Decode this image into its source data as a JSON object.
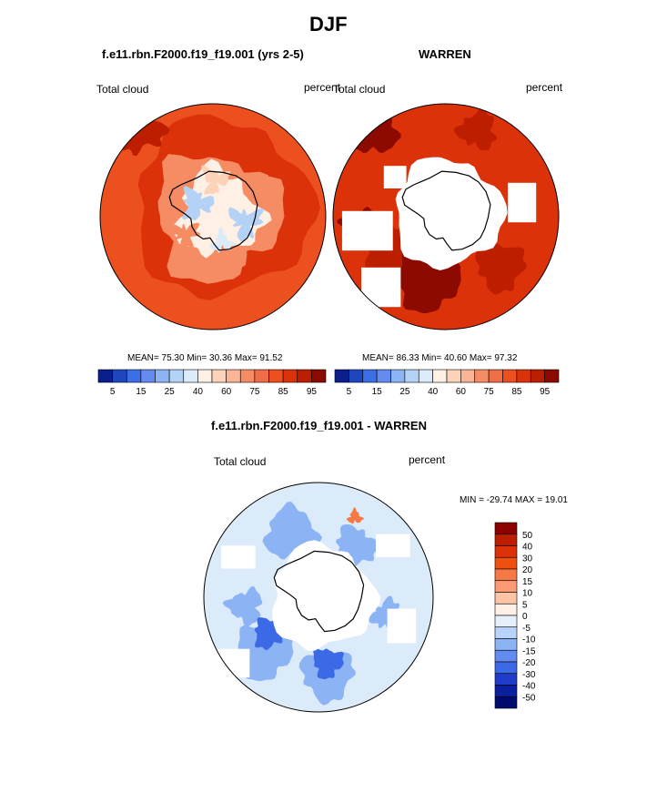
{
  "page_title": "DJF",
  "chart_data": [
    {
      "type": "heatmap",
      "title": "f.e11.rbn.F2000.f19_f19.001 (yrs 2-5)",
      "left_label": "Total cloud",
      "right_label": "percent",
      "stats_text": "MEAN=  75.30  Min=  30.36  Max=  91.52",
      "mean": 75.3,
      "min": 30.36,
      "max": 91.52,
      "colorbar": {
        "labels": [
          "5",
          "15",
          "25",
          "40",
          "60",
          "75",
          "85",
          "95"
        ],
        "colors": [
          "#0a1e8c",
          "#1e46be",
          "#3c6ee6",
          "#648cf0",
          "#8cb4f5",
          "#b4d2f5",
          "#dcebfa",
          "#fff0e6",
          "#fcd2b9",
          "#fab496",
          "#f58c64",
          "#f06e46",
          "#eb501e",
          "#dc320a",
          "#be1e00",
          "#8c0a00"
        ]
      },
      "regions": [
        {
          "zone": "ocean-outer",
          "value": 80
        },
        {
          "zone": "ocean-band",
          "value": 85
        },
        {
          "zone": "coast-ring",
          "value": 70
        },
        {
          "zone": "interior",
          "value": 45
        }
      ]
    },
    {
      "type": "heatmap",
      "title": "WARREN",
      "left_label": "Total cloud",
      "right_label": "percent",
      "stats_text": "MEAN=  86.33  Min=  40.60  Max=  97.32",
      "mean": 86.33,
      "min": 40.6,
      "max": 97.32,
      "colorbar": {
        "labels": [
          "5",
          "15",
          "25",
          "40",
          "60",
          "75",
          "85",
          "95"
        ],
        "colors": [
          "#0a1e8c",
          "#1e46be",
          "#3c6ee6",
          "#648cf0",
          "#8cb4f5",
          "#b4d2f5",
          "#dcebfa",
          "#fff0e6",
          "#fcd2b9",
          "#fab496",
          "#f58c64",
          "#f06e46",
          "#eb501e",
          "#dc320a",
          "#be1e00",
          "#8c0a00"
        ]
      },
      "regions": [
        {
          "zone": "ocean",
          "value": 85
        },
        {
          "zone": "high-cloud-patches",
          "value": 95
        },
        {
          "zone": "missing",
          "value": null
        }
      ]
    },
    {
      "type": "heatmap",
      "title": "f.e11.rbn.F2000.f19_f19.001 - WARREN",
      "left_label": "Total cloud",
      "right_label": "percent",
      "stats_text": "MIN = -29.74 MAX =  19.01",
      "min": -29.74,
      "max": 19.01,
      "colorbar": {
        "labels": [
          "50",
          "40",
          "30",
          "20",
          "15",
          "10",
          "5",
          "0",
          "-5",
          "-10",
          "-15",
          "-20",
          "-30",
          "-40",
          "-50"
        ],
        "colors": [
          "#8c0000",
          "#be1e00",
          "#dc320a",
          "#f0500f",
          "#f57846",
          "#fa9b73",
          "#fcc3a5",
          "#fff0e6",
          "#e6f0fa",
          "#b9d2fa",
          "#8cb4f5",
          "#648cf0",
          "#3c69e6",
          "#1e3cc8",
          "#0a1ea0",
          "#000a6e"
        ]
      },
      "regions": [
        {
          "zone": "ocean",
          "value": -3
        },
        {
          "zone": "negative-patches",
          "value": -12
        },
        {
          "zone": "strong-negative",
          "value": -25
        },
        {
          "zone": "missing",
          "value": null
        }
      ]
    }
  ]
}
